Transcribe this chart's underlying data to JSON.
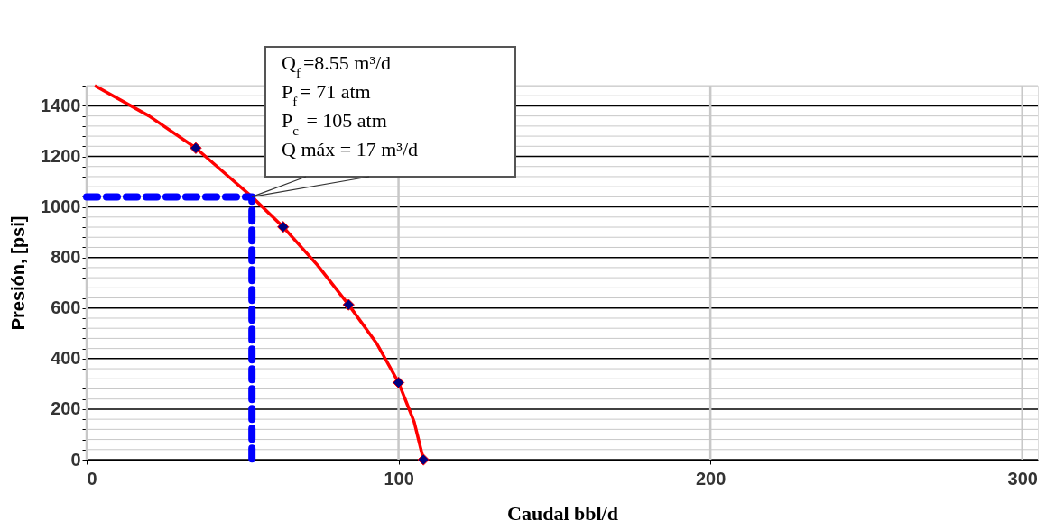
{
  "chart_data": {
    "type": "line",
    "xlabel": "Caudal bbl/d",
    "ylabel": "Presión, [psi]",
    "xlim": [
      0,
      305
    ],
    "xticks": [
      0,
      100,
      200,
      300
    ],
    "ylim": [
      0,
      1480
    ],
    "yticks": [
      0,
      {
        "value": 40,
        "label": null
      },
      {
        "value": 80,
        "label": null
      },
      {
        "value": 120,
        "label": null
      },
      {
        "value": 160,
        "label": null
      },
      200,
      {
        "value": 240,
        "label": null
      },
      {
        "value": 280,
        "label": null
      },
      {
        "value": 320,
        "label": null
      },
      {
        "value": 360,
        "label": null
      },
      400,
      {
        "value": 440,
        "label": null
      },
      {
        "value": 480,
        "label": null
      },
      {
        "value": 520,
        "label": null
      },
      {
        "value": 560,
        "label": null
      },
      600,
      {
        "value": 640,
        "label": null
      },
      {
        "value": 680,
        "label": null
      },
      {
        "value": 720,
        "label": null
      },
      {
        "value": 760,
        "label": null
      },
      800,
      {
        "value": 840,
        "label": null
      },
      {
        "value": 880,
        "label": null
      },
      {
        "value": 920,
        "label": null
      },
      {
        "value": 960,
        "label": null
      },
      1000,
      {
        "value": 1040,
        "label": null
      },
      {
        "value": 1080,
        "label": null
      },
      {
        "value": 1120,
        "label": null
      },
      {
        "value": 1160,
        "label": null
      },
      1200,
      {
        "value": 1240,
        "label": null
      },
      {
        "value": 1280,
        "label": null
      },
      {
        "value": 1320,
        "label": null
      },
      {
        "value": 1360,
        "label": null
      },
      1400,
      {
        "value": 1440,
        "label": null
      },
      {
        "value": 1480,
        "label": null
      }
    ],
    "grid": true,
    "series": [
      {
        "color": "#ff0000",
        "x": [
          2.6,
          20,
          35,
          53,
          63,
          74,
          84,
          93,
          100,
          105,
          108
        ],
        "values": [
          1480,
          1360,
          1233,
          1040,
          921,
          770,
          613,
          460,
          305,
          150,
          0
        ],
        "marker": "none",
        "line_style": "solid"
      },
      {
        "type": "scatter",
        "color": "#000080",
        "x": [
          35,
          63,
          84,
          100,
          108
        ],
        "values": [
          1233,
          921,
          613,
          305,
          0
        ],
        "marker": "diamond"
      },
      {
        "color": "#0000ff",
        "x": [
          0,
          53,
          53
        ],
        "values": [
          1040,
          1040,
          0
        ],
        "marker": "none",
        "line_style": "dashed"
      }
    ],
    "annotations": [
      "Q$_{f}$=8.55 m³/d\nP$_{f}$= 71 atm\nP$_{c}$ = 105 atm\nQ máx = 17 m³/d"
    ]
  }
}
